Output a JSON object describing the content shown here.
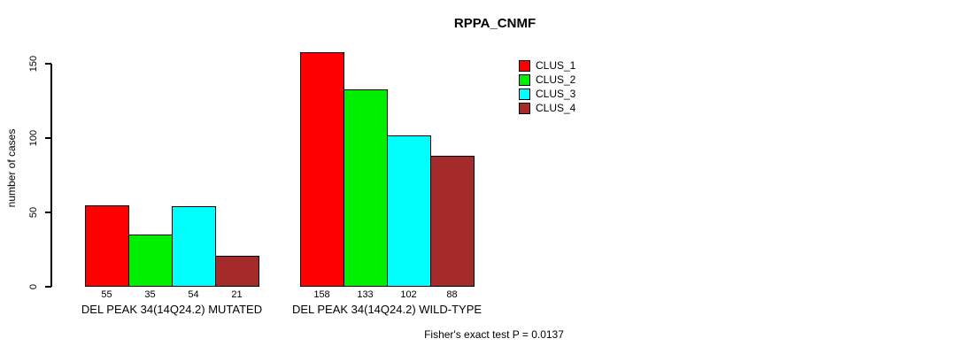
{
  "chart_data": {
    "type": "bar",
    "title": "RPPA_CNMF",
    "ylabel": "number of cases",
    "xlabel": "",
    "yticks": [
      0,
      50,
      100,
      150
    ],
    "ylim": [
      0,
      165
    ],
    "grid": false,
    "legend_position": "top-right",
    "categories": [
      "DEL PEAK 34(14Q24.2) MUTATED",
      "DEL PEAK 34(14Q24.2) WILD-TYPE"
    ],
    "series": [
      {
        "name": "CLUS_1",
        "color": "#ff0000",
        "values": [
          55,
          158
        ]
      },
      {
        "name": "CLUS_2",
        "color": "#00ee00",
        "values": [
          35,
          133
        ]
      },
      {
        "name": "CLUS_3",
        "color": "#00ffff",
        "values": [
          54,
          102
        ]
      },
      {
        "name": "CLUS_4",
        "color": "#a52a2a",
        "values": [
          21,
          88
        ]
      }
    ],
    "bar_value_labels_shown": true,
    "footnote": "Fisher's exact test P = 0.0137"
  }
}
